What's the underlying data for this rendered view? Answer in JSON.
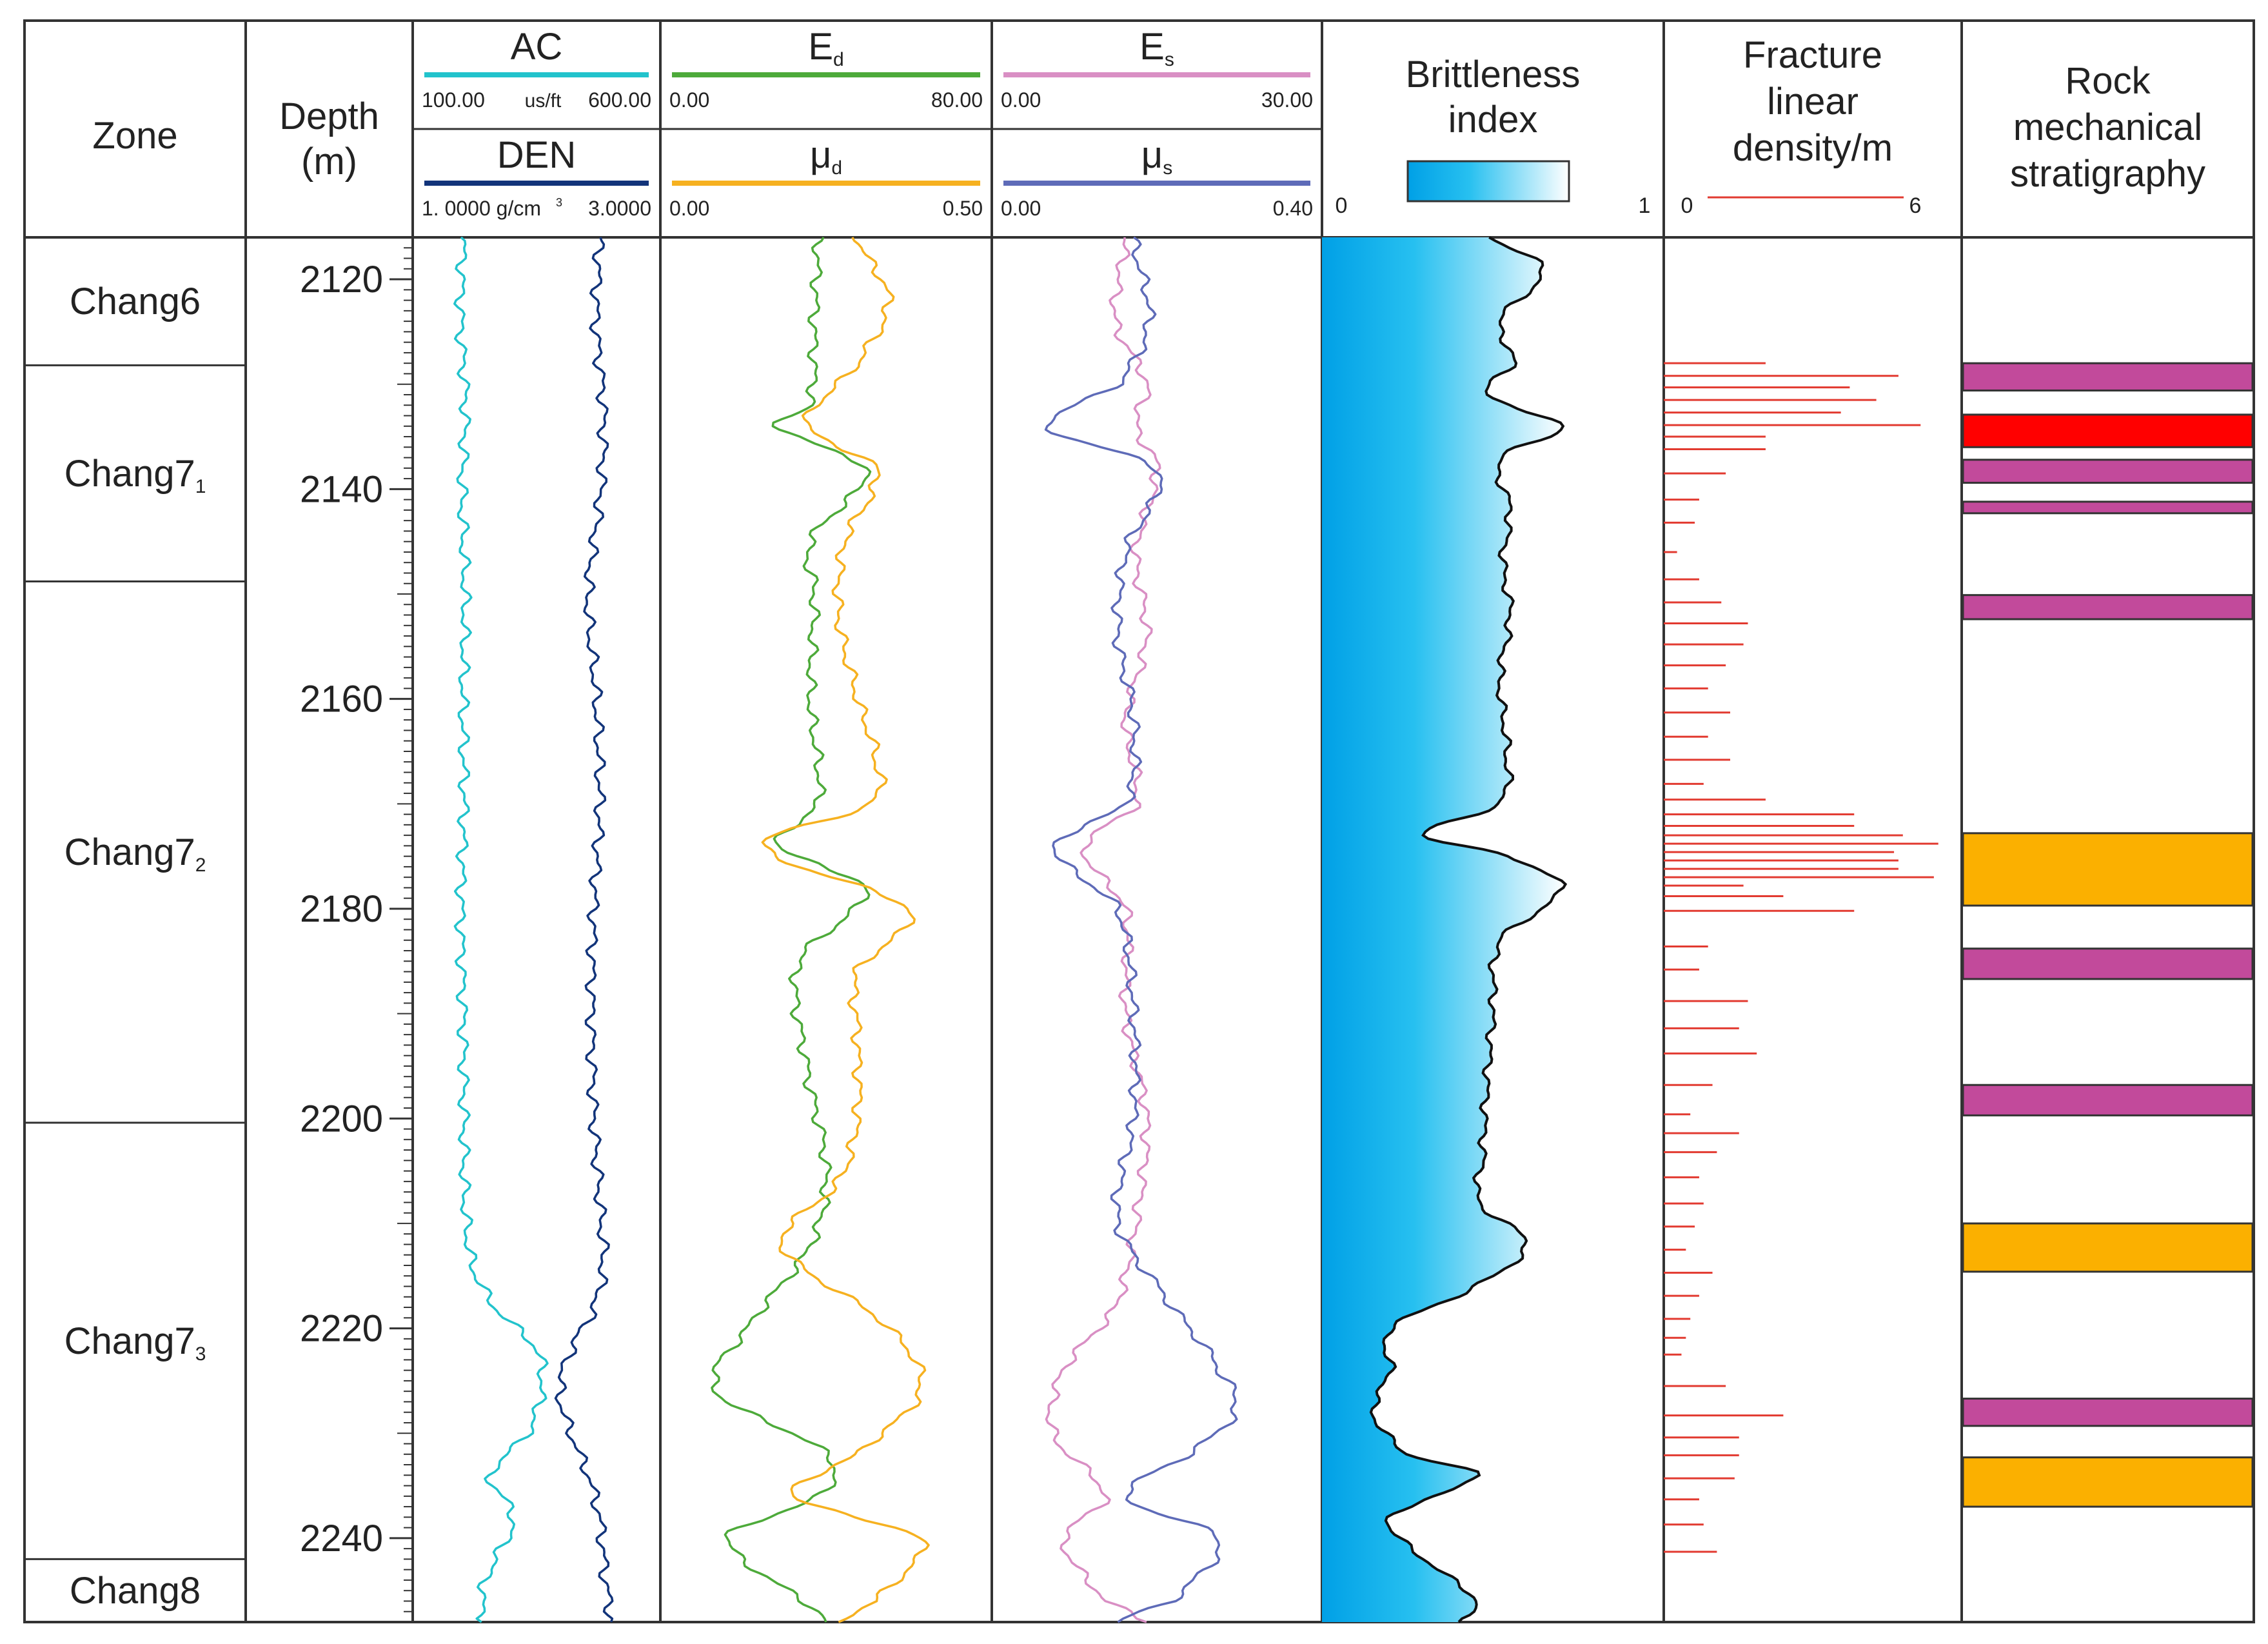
{
  "chart_data": {
    "type": "line",
    "title": "",
    "depth_axis": {
      "header": "Depth",
      "unit": "(m)",
      "range": [
        2116,
        2248
      ],
      "ticks": [
        2120,
        2140,
        2160,
        2180,
        2200,
        2220,
        2240
      ],
      "tick_labels": [
        "2120",
        "2140",
        "2160",
        "2180",
        "2200",
        "2220",
        "2240"
      ]
    },
    "zone_header": "Zone",
    "zones": [
      {
        "base": "Chang6",
        "sub": "",
        "top": 2116.0,
        "bottom": 2128.2
      },
      {
        "base": "Chang7",
        "sub": "1",
        "top": 2128.2,
        "bottom": 2148.8
      },
      {
        "base": "Chang7",
        "sub": "2",
        "top": 2148.8,
        "bottom": 2200.4
      },
      {
        "base": "Chang7",
        "sub": "3",
        "top": 2200.4,
        "bottom": 2242.0
      },
      {
        "base": "Chang8",
        "sub": "",
        "top": 2242.0,
        "bottom": 2248.0
      }
    ],
    "tracks": [
      {
        "id": "t1",
        "series": [
          {
            "name": "AC",
            "sub": "",
            "color": "#22c3cc",
            "min_label": "100.00",
            "max_label": "600.00",
            "unit": "us/ft",
            "range": [
              100,
              600
            ],
            "depth": [
              2116,
              2124,
              2132,
              2140,
              2150,
              2160,
              2170,
              2180,
              2190,
              2200,
              2208,
              2214,
              2218,
              2222,
              2226,
              2230,
              2234,
              2238,
              2244,
              2248
            ],
            "values": [
              190,
              185,
              195,
              188,
              194,
              190,
              192,
              186,
              190,
              192,
              194,
              210,
              260,
              350,
              360,
              330,
              250,
              300,
              240,
              230
            ]
          },
          {
            "name": "DEN",
            "sub": "",
            "color": "#12347a",
            "min_label": "1. 0000 g/cm",
            "max_label": "3.0000",
            "unit": "",
            "range": [
              1.0,
              3.0
            ],
            "depth": [
              2116,
              2124,
              2132,
              2140,
              2150,
              2160,
              2170,
              2180,
              2190,
              2200,
              2208,
              2214,
              2218,
              2222,
              2226,
              2230,
              2234,
              2238,
              2244,
              2248
            ],
            "values": [
              2.55,
              2.52,
              2.58,
              2.56,
              2.45,
              2.52,
              2.55,
              2.5,
              2.48,
              2.5,
              2.55,
              2.58,
              2.5,
              2.3,
              2.2,
              2.3,
              2.45,
              2.55,
              2.6,
              2.65
            ]
          }
        ]
      },
      {
        "id": "t2",
        "series": [
          {
            "name": "E",
            "sub": "d",
            "color": "#4daa3a",
            "min_label": "0.00",
            "max_label": "80.00",
            "unit": "",
            "range": [
              0,
              80
            ],
            "depth": [
              2116,
              2124,
              2132,
              2134,
              2138,
              2145,
              2150,
              2160,
              2170,
              2174,
              2178,
              2185,
              2195,
              2205,
              2212,
              2220,
              2226,
              2232,
              2236,
              2240,
              2248
            ],
            "values": [
              38,
              37,
              36,
              28,
              50,
              36,
              37,
              36,
              38,
              28,
              50,
              33,
              35,
              40,
              36,
              20,
              12,
              40,
              38,
              15,
              40
            ]
          },
          {
            "name": "μ",
            "sub": "d",
            "color": "#f6b120",
            "min_label": "0.00",
            "max_label": "0.50",
            "unit": "",
            "range": [
              0,
              0.5
            ],
            "depth": [
              2116,
              2122,
              2128,
              2134,
              2138,
              2145,
              2152,
              2160,
              2166,
              2170,
              2174,
              2180,
              2186,
              2192,
              2200,
              2206,
              2212,
              2220,
              2226,
              2232,
              2236,
              2240,
              2246,
              2248
            ],
            "values": [
              0.3,
              0.35,
              0.3,
              0.22,
              0.33,
              0.28,
              0.27,
              0.3,
              0.33,
              0.32,
              0.15,
              0.38,
              0.3,
              0.3,
              0.3,
              0.27,
              0.18,
              0.35,
              0.4,
              0.3,
              0.2,
              0.4,
              0.33,
              0.27
            ]
          }
        ]
      },
      {
        "id": "t3",
        "series": [
          {
            "name": "E",
            "sub": "s",
            "color": "#d98fc4",
            "min_label": "0.00",
            "max_label": "30.00",
            "unit": "",
            "range": [
              0,
              30
            ],
            "depth": [
              2116,
              2124,
              2130,
              2134,
              2138,
              2146,
              2154,
              2162,
              2170,
              2174,
              2180,
              2190,
              2200,
              2210,
              2218,
              2224,
              2230,
              2236,
              2240,
              2246,
              2248
            ],
            "values": [
              12,
              11,
              14,
              13,
              15,
              13,
              14,
              12,
              13,
              8,
              12,
              12,
              14,
              13,
              11,
              6,
              5,
              10,
              6,
              10,
              14
            ]
          },
          {
            "name": "μ",
            "sub": "s",
            "color": "#5e6bb8",
            "min_label": "0.00",
            "max_label": "0.40",
            "unit": "",
            "range": [
              0,
              0.4
            ],
            "depth": [
              2116,
              2124,
              2130,
              2134,
              2138,
              2146,
              2154,
              2162,
              2170,
              2174,
              2180,
              2190,
              2200,
              2210,
              2218,
              2224,
              2228,
              2232,
              2236,
              2240,
              2246,
              2248
            ],
            "values": [
              0.17,
              0.19,
              0.15,
              0.06,
              0.2,
              0.16,
              0.15,
              0.17,
              0.16,
              0.07,
              0.15,
              0.17,
              0.17,
              0.15,
              0.22,
              0.28,
              0.3,
              0.24,
              0.16,
              0.28,
              0.22,
              0.15
            ]
          }
        ]
      }
    ],
    "brittleness": {
      "title_line1": "Brittleness",
      "title_line2": "index",
      "min_label": "0",
      "max_label": "1",
      "range": [
        0,
        1
      ],
      "colors": [
        "#00a0e6",
        "#27c0f0",
        "#ffffff"
      ],
      "depth": [
        2116,
        2119,
        2124,
        2128,
        2131,
        2134,
        2137,
        2142,
        2147,
        2152,
        2158,
        2165,
        2170,
        2173,
        2175,
        2178,
        2183,
        2190,
        2198,
        2204,
        2208,
        2212,
        2216,
        2220,
        2224,
        2228,
        2232,
        2234,
        2238,
        2242,
        2246,
        2248
      ],
      "values": [
        0.5,
        0.65,
        0.52,
        0.56,
        0.48,
        0.7,
        0.52,
        0.55,
        0.53,
        0.55,
        0.52,
        0.54,
        0.52,
        0.3,
        0.55,
        0.7,
        0.52,
        0.5,
        0.48,
        0.47,
        0.46,
        0.6,
        0.45,
        0.2,
        0.2,
        0.15,
        0.25,
        0.45,
        0.2,
        0.3,
        0.45,
        0.4
      ]
    },
    "fracture": {
      "title_lines": [
        "Fracture",
        "linear",
        "density/m"
      ],
      "min_label": "0",
      "max_label": "6",
      "range": [
        0,
        6
      ],
      "color": "#e23a30",
      "depth": [
        2128.0,
        2129.2,
        2130.3,
        2131.5,
        2132.7,
        2133.9,
        2135.0,
        2136.2,
        2138.5,
        2141.0,
        2143.2,
        2146.0,
        2148.6,
        2150.8,
        2152.8,
        2154.8,
        2156.8,
        2159.0,
        2161.3,
        2163.6,
        2165.8,
        2168.1,
        2169.6,
        2171.0,
        2172.1,
        2173.0,
        2173.8,
        2174.6,
        2175.4,
        2176.2,
        2177.0,
        2177.8,
        2178.8,
        2180.2,
        2183.6,
        2185.8,
        2188.8,
        2191.4,
        2193.8,
        2196.8,
        2199.6,
        2201.4,
        2203.2,
        2205.6,
        2208.1,
        2210.3,
        2212.5,
        2214.7,
        2216.9,
        2219.1,
        2220.9,
        2222.5,
        2225.5,
        2228.3,
        2230.4,
        2232.1,
        2234.3,
        2236.3,
        2238.7,
        2241.3
      ],
      "values": [
        2.3,
        5.3,
        4.2,
        4.8,
        4.0,
        5.8,
        2.3,
        2.3,
        1.4,
        0.8,
        0.7,
        0.3,
        0.8,
        1.3,
        1.9,
        1.8,
        1.4,
        1.0,
        1.5,
        1.0,
        1.5,
        0.9,
        2.3,
        4.3,
        4.3,
        5.4,
        6.2,
        5.2,
        5.3,
        5.3,
        6.1,
        1.8,
        2.7,
        4.3,
        1.0,
        0.8,
        1.9,
        1.7,
        2.1,
        1.1,
        0.6,
        1.7,
        1.2,
        0.8,
        0.9,
        0.7,
        0.5,
        1.1,
        0.8,
        0.6,
        0.5,
        0.4,
        1.4,
        2.7,
        1.7,
        1.7,
        1.6,
        0.8,
        0.9,
        1.2
      ]
    },
    "stratigraphy": {
      "title_lines": [
        "Rock",
        "mechanical",
        "stratigraphy"
      ],
      "layers": [
        {
          "top": 2128.0,
          "bottom": 2130.6,
          "color": "#c24a9b"
        },
        {
          "top": 2132.9,
          "bottom": 2136.0,
          "color": "#ff0000"
        },
        {
          "top": 2137.2,
          "bottom": 2139.4,
          "color": "#c24a9b"
        },
        {
          "top": 2141.2,
          "bottom": 2142.3,
          "color": "#c24a9b"
        },
        {
          "top": 2150.1,
          "bottom": 2152.4,
          "color": "#c24a9b"
        },
        {
          "top": 2172.8,
          "bottom": 2179.7,
          "color": "#fbb000"
        },
        {
          "top": 2183.8,
          "bottom": 2186.7,
          "color": "#c24a9b"
        },
        {
          "top": 2196.8,
          "bottom": 2199.7,
          "color": "#c24a9b"
        },
        {
          "top": 2210.0,
          "bottom": 2214.6,
          "color": "#fbb000"
        },
        {
          "top": 2226.7,
          "bottom": 2229.3,
          "color": "#c24a9b"
        },
        {
          "top": 2232.3,
          "bottom": 2237.0,
          "color": "#fbb000"
        }
      ]
    }
  }
}
